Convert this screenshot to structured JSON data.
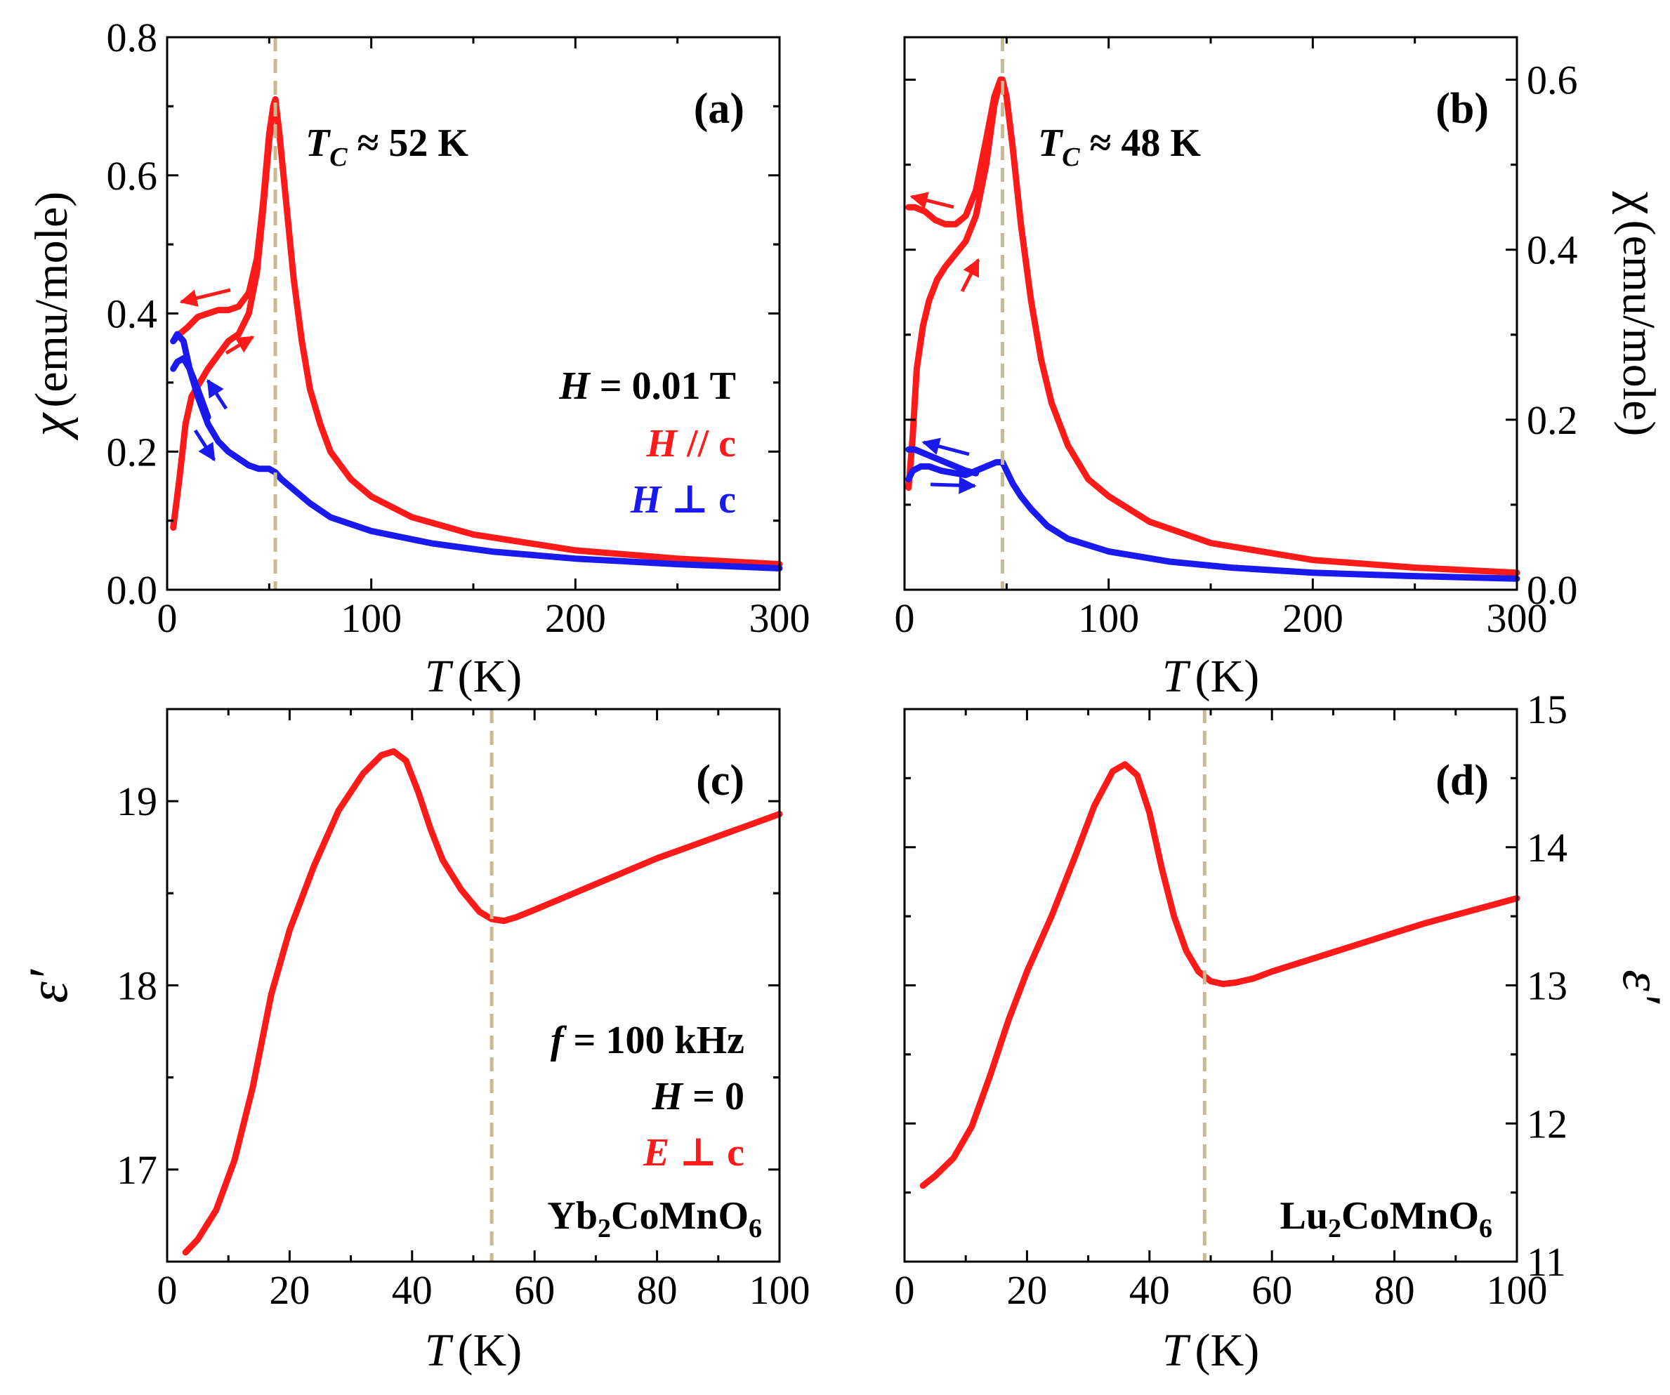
{
  "colors": {
    "red": "#ff1a1a",
    "blue": "#1a1aee",
    "tc_line": "#c8b98f"
  },
  "chart_data": [
    {
      "type": "line",
      "panel_label": "(a)",
      "xlabel": {
        "symbol": "T",
        "unit": "(K)"
      },
      "ylabel": {
        "symbol": "χ",
        "unit": "(emu/mole)"
      },
      "xlim": [
        0,
        300
      ],
      "ylim": [
        0,
        0.8
      ],
      "xticks": [
        "0",
        "100",
        "200",
        "300"
      ],
      "yticks": [
        "0.0",
        "0.2",
        "0.4",
        "0.6",
        "0.8"
      ],
      "tc_line_x": 53,
      "tc_label": {
        "prefix": "T",
        "sub": "C",
        "value": " ≈ 52 K"
      },
      "annotations": {
        "field_h": "H",
        "field_v": " = 0.01 T",
        "par_h": "H",
        "par_v": " // c",
        "perp_h": "H",
        "perp_v": " ⊥ c"
      },
      "series": [
        {
          "color": "red",
          "x": [
            3,
            6,
            9,
            12,
            16,
            20,
            25,
            30,
            35,
            40,
            44,
            47,
            50,
            52,
            53,
            55,
            58,
            62,
            66,
            70,
            75,
            80,
            90,
            100,
            120,
            150,
            200,
            250,
            300
          ],
          "y": [
            0.09,
            0.16,
            0.24,
            0.28,
            0.3,
            0.32,
            0.34,
            0.36,
            0.37,
            0.4,
            0.46,
            0.55,
            0.65,
            0.7,
            0.71,
            0.66,
            0.57,
            0.45,
            0.36,
            0.29,
            0.24,
            0.2,
            0.16,
            0.135,
            0.105,
            0.08,
            0.057,
            0.045,
            0.037
          ]
        },
        {
          "color": "red",
          "x": [
            3,
            6,
            10,
            15,
            20,
            25,
            30,
            35,
            40,
            44,
            47,
            50,
            52,
            53
          ],
          "y": [
            0.36,
            0.37,
            0.38,
            0.395,
            0.4,
            0.405,
            0.405,
            0.41,
            0.43,
            0.48,
            0.56,
            0.66,
            0.7,
            0.71
          ]
        },
        {
          "color": "blue",
          "x": [
            3,
            5,
            8,
            11,
            15,
            20,
            25,
            30,
            35,
            40,
            45,
            50,
            53,
            56,
            60,
            70,
            80,
            100,
            130,
            160,
            200,
            250,
            300
          ],
          "y": [
            0.36,
            0.37,
            0.36,
            0.32,
            0.28,
            0.24,
            0.215,
            0.2,
            0.19,
            0.18,
            0.175,
            0.175,
            0.17,
            0.16,
            0.15,
            0.125,
            0.105,
            0.085,
            0.067,
            0.055,
            0.045,
            0.037,
            0.031
          ]
        },
        {
          "color": "blue",
          "x": [
            3,
            5,
            8,
            11,
            15,
            20
          ],
          "y": [
            0.32,
            0.33,
            0.335,
            0.32,
            0.29,
            0.25
          ]
        }
      ]
    },
    {
      "type": "line",
      "panel_label": "(b)",
      "xlabel": {
        "symbol": "T",
        "unit": "(K)"
      },
      "ylabel": {
        "symbol": "χ",
        "unit": "(emu/mole)"
      },
      "xlim": [
        0,
        300
      ],
      "ylim": [
        0,
        0.65
      ],
      "xticks": [
        "0",
        "100",
        "200",
        "300"
      ],
      "yticks": [
        "0.0",
        "0.2",
        "0.4",
        "0.6"
      ],
      "tc_line_x": 48,
      "tc_label": {
        "prefix": "T",
        "sub": "C",
        "value": " ≈ 48 K"
      },
      "series": [
        {
          "color": "red",
          "x": [
            2,
            4,
            6,
            9,
            12,
            16,
            20,
            25,
            30,
            35,
            40,
            44,
            47,
            48,
            50,
            53,
            57,
            62,
            67,
            72,
            80,
            90,
            100,
            120,
            150,
            200,
            250,
            300
          ],
          "y": [
            0.12,
            0.18,
            0.26,
            0.31,
            0.34,
            0.365,
            0.38,
            0.395,
            0.41,
            0.44,
            0.5,
            0.57,
            0.6,
            0.6,
            0.58,
            0.52,
            0.43,
            0.34,
            0.27,
            0.22,
            0.17,
            0.13,
            0.11,
            0.08,
            0.055,
            0.035,
            0.026,
            0.02
          ]
        },
        {
          "color": "red",
          "x": [
            2,
            5,
            10,
            15,
            20,
            25,
            30,
            35,
            40,
            44,
            47,
            48
          ],
          "y": [
            0.45,
            0.45,
            0.445,
            0.435,
            0.43,
            0.43,
            0.44,
            0.47,
            0.53,
            0.58,
            0.6,
            0.6
          ]
        },
        {
          "color": "blue",
          "x": [
            2,
            4,
            8,
            12,
            18,
            25,
            30,
            35,
            40,
            45,
            48,
            50,
            53,
            57,
            62,
            70,
            80,
            100,
            130,
            160,
            200,
            250,
            300
          ],
          "y": [
            0.13,
            0.14,
            0.145,
            0.145,
            0.14,
            0.137,
            0.135,
            0.14,
            0.145,
            0.15,
            0.15,
            0.14,
            0.125,
            0.11,
            0.095,
            0.075,
            0.06,
            0.045,
            0.033,
            0.026,
            0.02,
            0.016,
            0.013
          ]
        },
        {
          "color": "blue",
          "x": [
            2,
            5,
            10,
            15,
            20,
            25,
            30,
            35
          ],
          "y": [
            0.165,
            0.165,
            0.16,
            0.155,
            0.15,
            0.145,
            0.14,
            0.137
          ]
        }
      ]
    },
    {
      "type": "line",
      "panel_label": "(c)",
      "xlabel": {
        "symbol": "T",
        "unit": "(K)"
      },
      "ylabel": {
        "symbol": "ε′"
      },
      "xlim": [
        0,
        100
      ],
      "ylim": [
        16.5,
        19.5
      ],
      "xticks": [
        "0",
        "20",
        "40",
        "60",
        "80",
        "100"
      ],
      "yticks": [
        "17",
        "18",
        "19"
      ],
      "tc_line_x": 53,
      "annotations": {
        "f_h": "f",
        "f_v": " = 100 kHz",
        "h_h": "H",
        "h_v": " = 0",
        "e_h": "E",
        "e_v": " ⊥ c"
      },
      "compound": {
        "p1": "Yb",
        "s1": "2",
        "p2": "CoMnO",
        "s2": "6"
      },
      "series": [
        {
          "color": "red",
          "x": [
            3,
            5,
            8,
            11,
            14,
            17,
            20,
            24,
            28,
            32,
            35,
            37,
            39,
            41,
            43,
            45,
            48,
            51,
            53,
            55,
            57,
            60,
            65,
            70,
            75,
            80,
            85,
            90,
            95,
            100
          ],
          "y": [
            16.55,
            16.62,
            16.78,
            17.05,
            17.45,
            17.95,
            18.3,
            18.65,
            18.95,
            19.15,
            19.25,
            19.27,
            19.22,
            19.05,
            18.85,
            18.68,
            18.52,
            18.4,
            18.36,
            18.35,
            18.37,
            18.41,
            18.48,
            18.55,
            18.62,
            18.69,
            18.75,
            18.81,
            18.87,
            18.93
          ]
        }
      ]
    },
    {
      "type": "line",
      "panel_label": "(d)",
      "xlabel": {
        "symbol": "T",
        "unit": "(K)"
      },
      "ylabel": {
        "symbol": "ε′"
      },
      "xlim": [
        0,
        100
      ],
      "ylim": [
        11,
        15
      ],
      "xticks": [
        "0",
        "20",
        "40",
        "60",
        "80",
        "100"
      ],
      "yticks": [
        "11",
        "12",
        "13",
        "14",
        "15"
      ],
      "tc_line_x": 49,
      "compound": {
        "p1": "Lu",
        "s1": "2",
        "p2": "CoMnO",
        "s2": "6"
      },
      "series": [
        {
          "color": "red",
          "x": [
            3,
            5,
            8,
            11,
            14,
            17,
            20,
            24,
            28,
            31,
            34,
            36,
            38,
            40,
            42,
            44,
            46,
            48,
            50,
            52,
            54,
            57,
            60,
            65,
            70,
            75,
            80,
            85,
            90,
            95,
            100
          ],
          "y": [
            11.55,
            11.62,
            11.75,
            11.98,
            12.35,
            12.75,
            13.1,
            13.5,
            13.95,
            14.3,
            14.55,
            14.6,
            14.52,
            14.25,
            13.85,
            13.5,
            13.25,
            13.1,
            13.03,
            13.01,
            13.02,
            13.05,
            13.1,
            13.17,
            13.24,
            13.31,
            13.38,
            13.45,
            13.51,
            13.57,
            13.63
          ]
        }
      ]
    }
  ]
}
